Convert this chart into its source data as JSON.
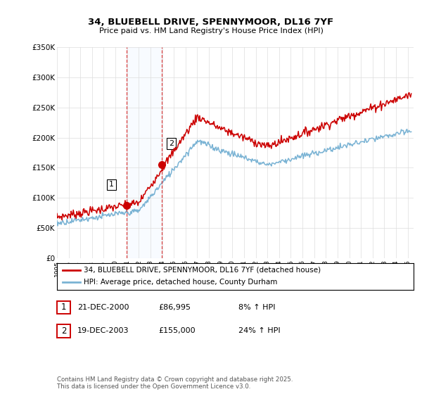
{
  "title": "34, BLUEBELL DRIVE, SPENNYMOOR, DL16 7YF",
  "subtitle": "Price paid vs. HM Land Registry's House Price Index (HPI)",
  "ylabel_ticks": [
    "£0",
    "£50K",
    "£100K",
    "£150K",
    "£200K",
    "£250K",
    "£300K",
    "£350K"
  ],
  "ylim": [
    0,
    350000
  ],
  "xlim_start": 1995.0,
  "xlim_end": 2025.5,
  "hpi_color": "#7ab3d4",
  "price_color": "#cc0000",
  "sale1_date": 2000.97,
  "sale1_price": 86995,
  "sale2_date": 2003.97,
  "sale2_price": 155000,
  "vline_color": "#dd3333",
  "vspan_color": "#ddeeff",
  "legend_line1": "34, BLUEBELL DRIVE, SPENNYMOOR, DL16 7YF (detached house)",
  "legend_line2": "HPI: Average price, detached house, County Durham",
  "table_row1_num": "1",
  "table_row1_date": "21-DEC-2000",
  "table_row1_price": "£86,995",
  "table_row1_hpi": "8% ↑ HPI",
  "table_row2_num": "2",
  "table_row2_date": "19-DEC-2003",
  "table_row2_price": "£155,000",
  "table_row2_hpi": "24% ↑ HPI",
  "footnote": "Contains HM Land Registry data © Crown copyright and database right 2025.\nThis data is licensed under the Open Government Licence v3.0.",
  "background_color": "#ffffff"
}
